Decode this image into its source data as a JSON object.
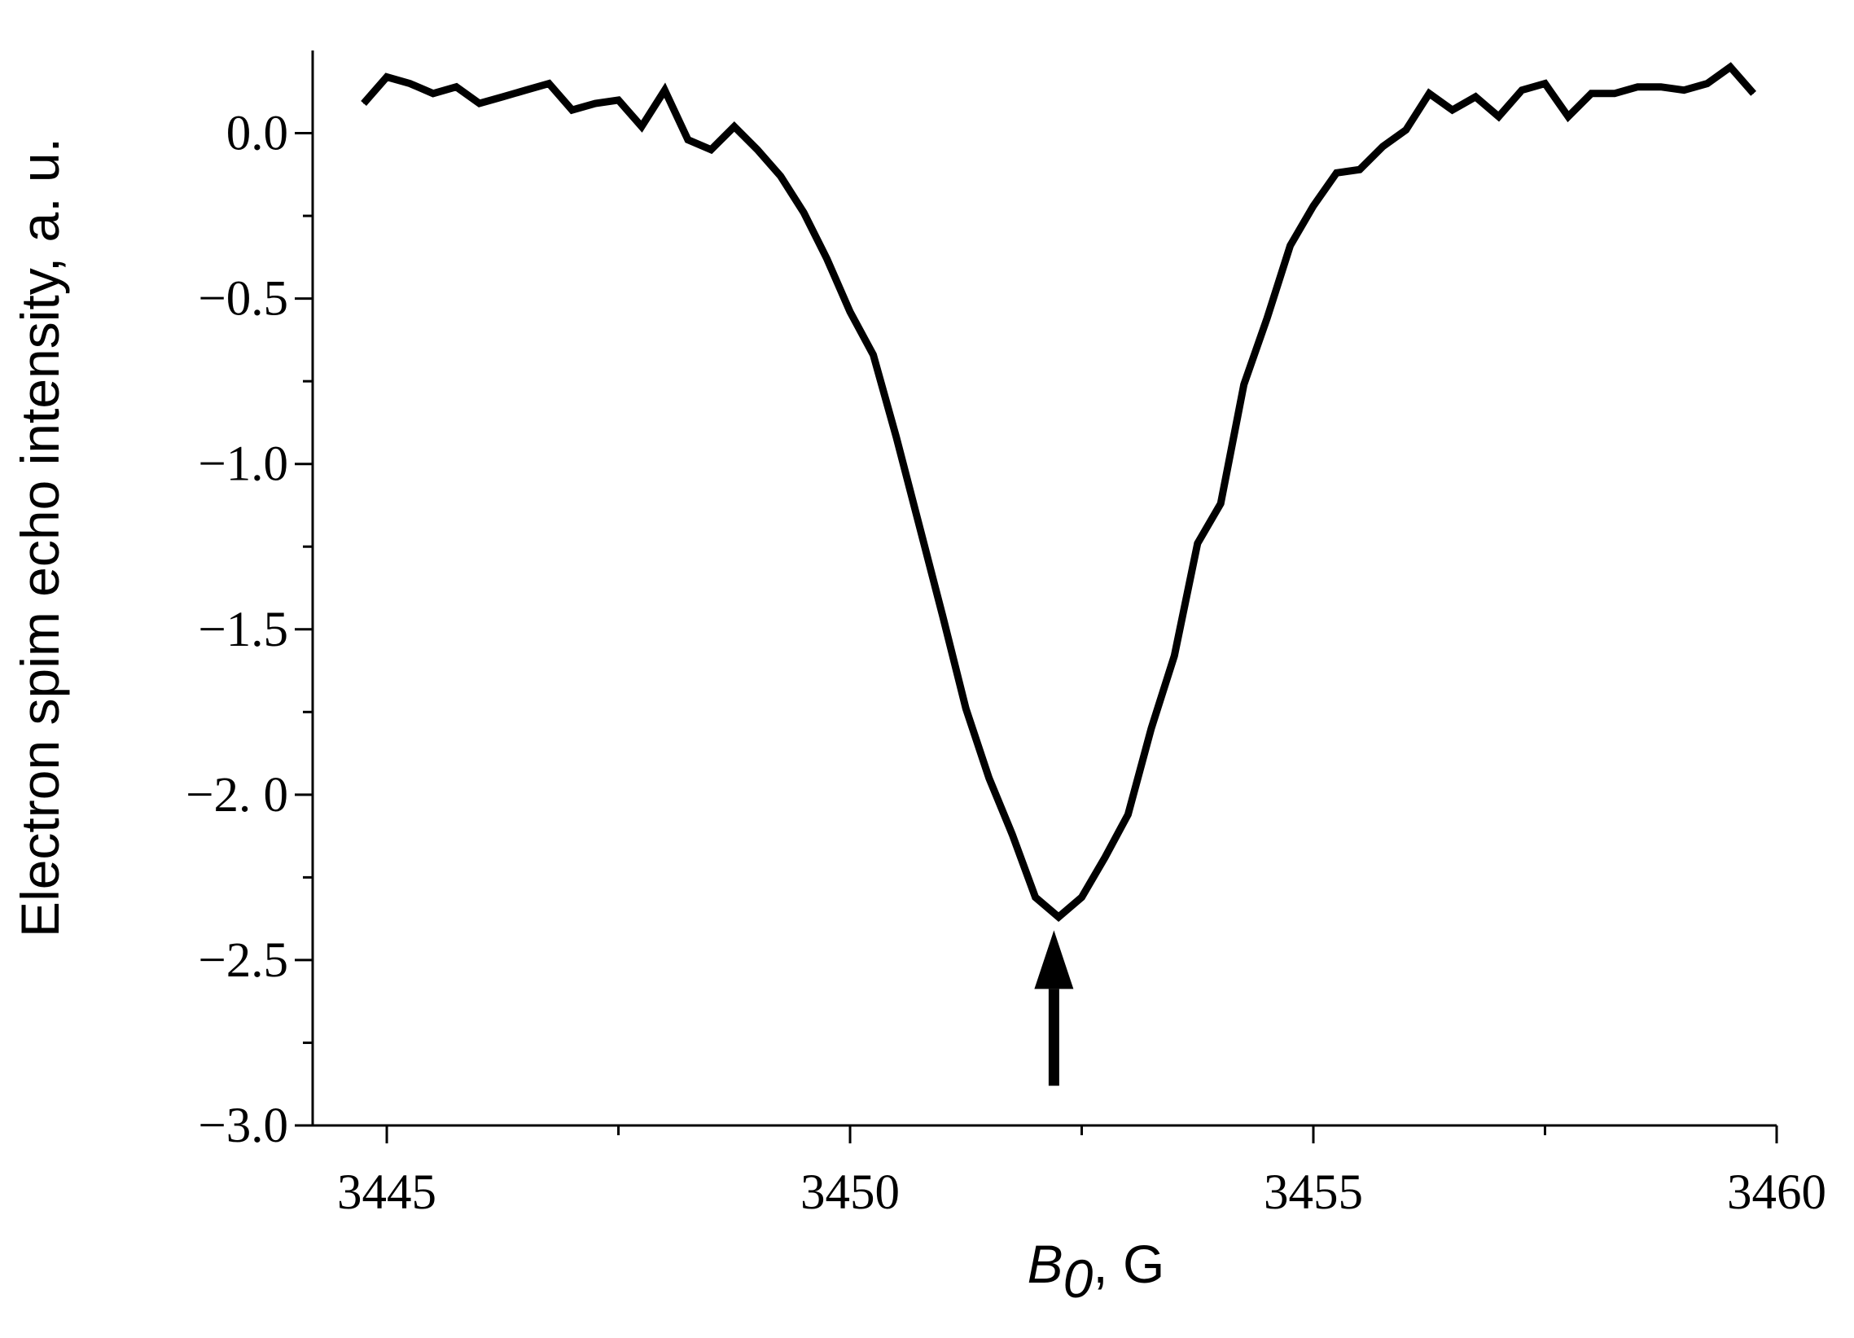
{
  "chart_data": {
    "type": "line",
    "title": "",
    "xlabel_main": "B",
    "xlabel_sub": "0",
    "xlabel_unit": ", G",
    "ylabel": "Electron spim echo intensity, a. u.",
    "xlim": [
      3444.2,
      3460.0
    ],
    "ylim": [
      -3.0,
      0.25
    ],
    "xticks": [
      3445,
      3450,
      3455,
      3460
    ],
    "xtick_labels": [
      "3445",
      "3450",
      "3455",
      "3460"
    ],
    "yticks": [
      0.0,
      -0.5,
      -1.0,
      -1.5,
      -2.0,
      -2.5,
      -3.0
    ],
    "ytick_labels": [
      "0.0",
      "−0.5",
      "−1.0",
      "−1.5",
      "−2. 0",
      "−2.5",
      "−3.0"
    ],
    "x_minor_step": 2.5,
    "y_minor_step": 0.25,
    "grid": false,
    "line_color": "#000000",
    "annotation": {
      "type": "arrow",
      "x": 3452.2,
      "y_from": -2.88,
      "y_to": -2.41
    },
    "series": [
      {
        "x": [
          3444.75,
          3445.0,
          3445.25,
          3445.5,
          3445.75,
          3446.0,
          3446.25,
          3446.5,
          3446.75,
          3447.0,
          3447.25,
          3447.5,
          3447.75,
          3448.0,
          3448.25,
          3448.5,
          3448.75,
          3449.0,
          3449.25,
          3449.5,
          3449.75,
          3450.0,
          3450.25,
          3450.5,
          3450.75,
          3451.0,
          3451.25,
          3451.5,
          3451.75,
          3452.0,
          3452.25,
          3452.5,
          3452.75,
          3453.0,
          3453.25,
          3453.5,
          3453.75,
          3454.0,
          3454.25,
          3454.5,
          3454.75,
          3455.0,
          3455.25,
          3455.5,
          3455.75,
          3456.0,
          3456.25,
          3456.5,
          3456.75,
          3457.0,
          3457.25,
          3457.5,
          3457.75,
          3458.0,
          3458.25,
          3458.5,
          3458.75,
          3459.0,
          3459.25,
          3459.5,
          3459.75
        ],
        "values": [
          0.09,
          0.17,
          0.15,
          0.12,
          0.14,
          0.09,
          0.11,
          0.13,
          0.15,
          0.07,
          0.09,
          0.1,
          0.02,
          0.13,
          -0.02,
          -0.05,
          0.02,
          -0.05,
          -0.13,
          -0.24,
          -0.38,
          -0.54,
          -0.67,
          -0.92,
          -1.19,
          -1.46,
          -1.74,
          -1.95,
          -2.12,
          -2.31,
          -2.37,
          -2.31,
          -2.19,
          -2.06,
          -1.8,
          -1.58,
          -1.24,
          -1.12,
          -0.76,
          -0.56,
          -0.34,
          -0.22,
          -0.12,
          -0.11,
          -0.04,
          0.01,
          0.12,
          0.07,
          0.11,
          0.05,
          0.13,
          0.15,
          0.05,
          0.12,
          0.12,
          0.14,
          0.14,
          0.13,
          0.15,
          0.2,
          0.12
        ]
      }
    ]
  }
}
